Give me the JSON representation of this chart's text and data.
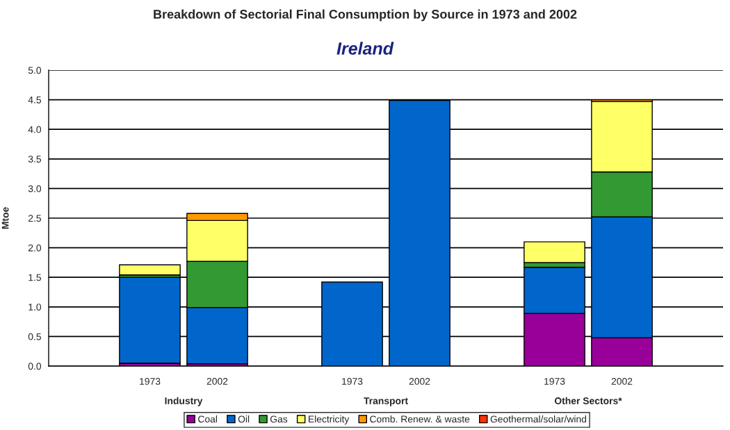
{
  "chart_data": {
    "type": "bar",
    "title": "Breakdown of Sectorial Final Consumption by Source in 1973 and 2002",
    "subtitle": "Ireland",
    "ylabel": "Mtoe",
    "categories": [
      null,
      "1973",
      "2002",
      null,
      "1973",
      "2002",
      null,
      "1973",
      "2002",
      null
    ],
    "stacked": true,
    "ylim": [
      0,
      5.0
    ],
    "yticks": [
      {
        "value": 0,
        "label": "0.0"
      },
      0.5,
      {
        "value": 1,
        "label": "1.0"
      },
      1.5,
      {
        "value": 2,
        "label": "2.0"
      },
      2.5,
      {
        "value": 3,
        "label": "3.0"
      },
      3.5,
      {
        "value": 4,
        "label": "4.0"
      },
      4.5,
      {
        "value": 5,
        "label": "5.0"
      }
    ],
    "grid": "y",
    "legend": "bottom",
    "series": [
      {
        "name": "Coal",
        "color": "#990099",
        "values": [
          null,
          0.05,
          0.04,
          null,
          null,
          null,
          null,
          0.89,
          0.48,
          null
        ]
      },
      {
        "name": "Oil",
        "color": "#0066cc",
        "values": [
          null,
          1.45,
          0.95,
          null,
          1.42,
          4.49,
          null,
          0.78,
          2.04,
          null
        ]
      },
      {
        "name": "Gas",
        "color": "#339933",
        "values": [
          null,
          0.04,
          0.78,
          null,
          null,
          null,
          null,
          0.08,
          0.76,
          null
        ]
      },
      {
        "name": "Electricity",
        "color": "#ffff66",
        "values": [
          null,
          0.17,
          0.69,
          null,
          null,
          null,
          null,
          0.35,
          1.19,
          null
        ]
      },
      {
        "name": "Comb. Renew. & waste",
        "color": "#ff9900",
        "values": [
          null,
          null,
          0.12,
          null,
          null,
          null,
          null,
          null,
          0.03,
          null
        ]
      },
      {
        "name": "Geothermal/solar/wind",
        "color": "#ff3300",
        "values": [
          null,
          null,
          null,
          null,
          null,
          null,
          null,
          null,
          null,
          null
        ]
      }
    ],
    "annotations": [
      "Industry",
      "Transport",
      "Other Sectors*"
    ]
  }
}
